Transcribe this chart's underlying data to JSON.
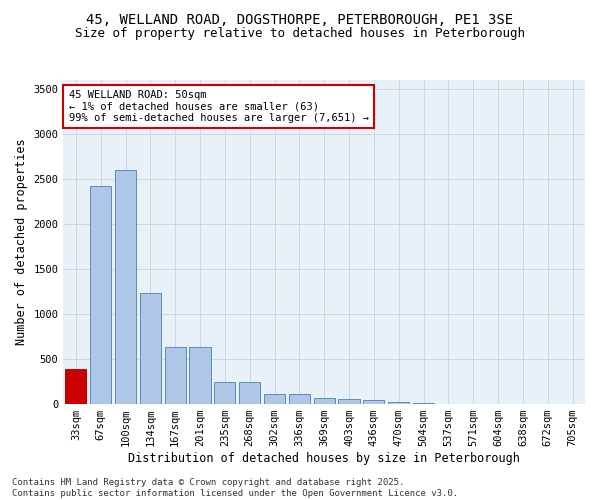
{
  "title_line1": "45, WELLAND ROAD, DOGSTHORPE, PETERBOROUGH, PE1 3SE",
  "title_line2": "Size of property relative to detached houses in Peterborough",
  "xlabel": "Distribution of detached houses by size in Peterborough",
  "ylabel": "Number of detached properties",
  "categories": [
    "33sqm",
    "67sqm",
    "100sqm",
    "134sqm",
    "167sqm",
    "201sqm",
    "235sqm",
    "268sqm",
    "302sqm",
    "336sqm",
    "369sqm",
    "403sqm",
    "436sqm",
    "470sqm",
    "504sqm",
    "537sqm",
    "571sqm",
    "604sqm",
    "638sqm",
    "672sqm",
    "705sqm"
  ],
  "values": [
    390,
    2420,
    2600,
    1230,
    630,
    630,
    245,
    245,
    110,
    110,
    65,
    55,
    40,
    25,
    10,
    5,
    2,
    1,
    1,
    0,
    0
  ],
  "bar_color": "#aec6e8",
  "bar_edge_color": "#5b8db8",
  "highlight_bar_index": 0,
  "highlight_color": "#cc0000",
  "highlight_edge_color": "#cc0000",
  "annotation_text": "45 WELLAND ROAD: 50sqm\n← 1% of detached houses are smaller (63)\n99% of semi-detached houses are larger (7,651) →",
  "annotation_box_color": "#ffffff",
  "annotation_box_edge_color": "#cc0000",
  "ylim": [
    0,
    3600
  ],
  "yticks": [
    0,
    500,
    1000,
    1500,
    2000,
    2500,
    3000,
    3500
  ],
  "grid_color": "#c8d8e8",
  "background_color": "#e8f0f8",
  "footer_text": "Contains HM Land Registry data © Crown copyright and database right 2025.\nContains public sector information licensed under the Open Government Licence v3.0.",
  "title_fontsize": 10,
  "subtitle_fontsize": 9,
  "axis_label_fontsize": 8.5,
  "tick_fontsize": 7.5,
  "annotation_fontsize": 7.5,
  "footer_fontsize": 6.5
}
